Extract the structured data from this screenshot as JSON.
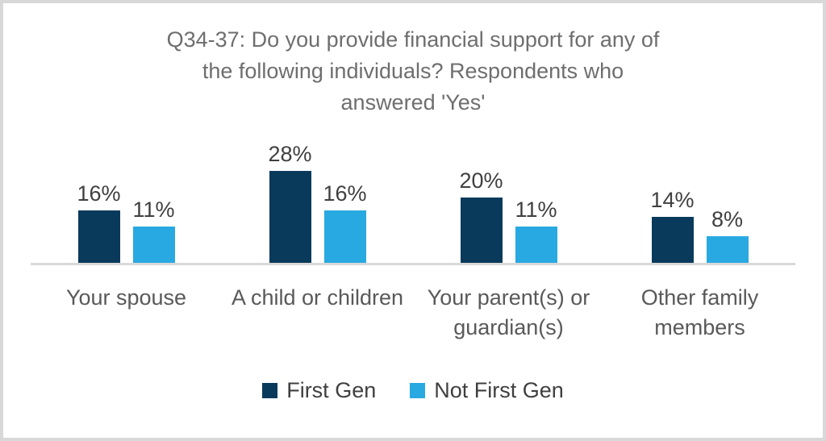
{
  "page": {
    "background_color": "#ffffff",
    "frame_border_color": "#d8d8d8"
  },
  "chart_data": {
    "type": "bar",
    "title": "Q34-37: Do you provide financial support for any of the following individuals? Respondents who answered 'Yes'",
    "title_lines": [
      "Q34-37: Do you provide financial support for any of",
      "the following individuals? Respondents who",
      "answered 'Yes'"
    ],
    "categories": [
      "Your spouse",
      "A child or children",
      "Your parent(s) or guardian(s)",
      "Other family members"
    ],
    "series": [
      {
        "name": "First Gen",
        "color": "#093a5c",
        "values": [
          16,
          28,
          20,
          14
        ]
      },
      {
        "name": "Not First Gen",
        "color": "#29a9e1",
        "values": [
          11,
          16,
          11,
          8
        ]
      }
    ],
    "value_suffix": "%",
    "data_labels": true,
    "xlabel": "",
    "ylabel": "",
    "ylim": [
      0,
      30
    ],
    "grid": false,
    "y_axis_ticks_visible": false,
    "legend_position": "bottom",
    "axis_line_color": "#d9d9d9",
    "title_color": "#6e6e6e",
    "data_label_color": "#3f3f3f",
    "category_label_color": "#595959",
    "legend_text_color": "#3f3f3f"
  }
}
